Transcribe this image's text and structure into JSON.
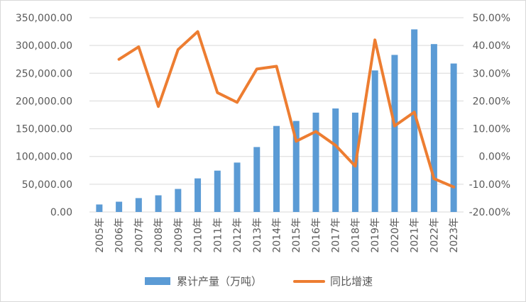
{
  "chart_data": {
    "type": "bar+line",
    "title": "",
    "categories": [
      "2005年",
      "2006年",
      "2007年",
      "2008年",
      "2009年",
      "2010年",
      "2011年",
      "2012年",
      "2013年",
      "2014年",
      "2015年",
      "2016年",
      "2017年",
      "2018年",
      "2019年",
      "2020年",
      "2021年",
      "2022年",
      "2023年"
    ],
    "series": [
      {
        "name": "累计产量（万吨）",
        "type": "bar",
        "axis": "left",
        "color": "#5b9bd5",
        "values": [
          13500,
          18500,
          25000,
          30000,
          41500,
          60500,
          74500,
          89000,
          117000,
          155000,
          164000,
          179000,
          186500,
          179000,
          255000,
          283000,
          329000,
          302500,
          267500
        ]
      },
      {
        "name": "同比增速",
        "type": "line",
        "axis": "right",
        "color": "#ed7d31",
        "values": [
          null,
          35.0,
          39.5,
          18.0,
          38.5,
          45.0,
          23.0,
          19.5,
          31.5,
          32.5,
          5.5,
          9.0,
          4.0,
          -3.5,
          42.0,
          11.0,
          16.0,
          -8.0,
          -11.0
        ]
      }
    ],
    "yleft": {
      "ylim": [
        0,
        350000
      ],
      "ticks": [
        0,
        50000,
        100000,
        150000,
        200000,
        250000,
        300000,
        350000
      ],
      "tick_labels": [
        "0.00",
        "50,000.00",
        "100,000.00",
        "150,000.00",
        "200,000.00",
        "250,000.00",
        "300,000.00",
        "350,000.00"
      ]
    },
    "yright": {
      "ylim": [
        -20,
        50
      ],
      "ticks": [
        -20,
        -10,
        0,
        10,
        20,
        30,
        40,
        50
      ],
      "tick_labels": [
        "-20.00%",
        "-10.00%",
        "0.00%",
        "10.00%",
        "20.00%",
        "30.00%",
        "40.00%",
        "50.00%"
      ]
    },
    "xlabel": "",
    "ylabel": "",
    "grid": true,
    "legend": "bottom"
  }
}
